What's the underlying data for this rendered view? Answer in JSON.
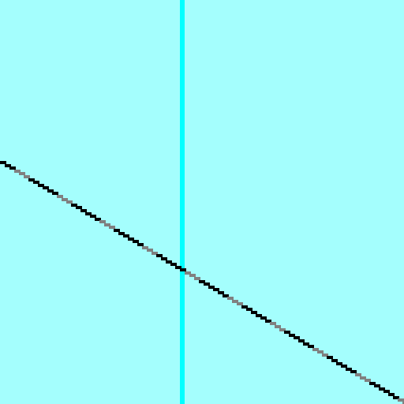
{
  "canvas": {
    "background_color": "#a4fefd",
    "vertical_bar_color": "#00ffff",
    "line_colors": [
      "#000000",
      "#808080"
    ],
    "line_style": "pixelated-dashed"
  }
}
